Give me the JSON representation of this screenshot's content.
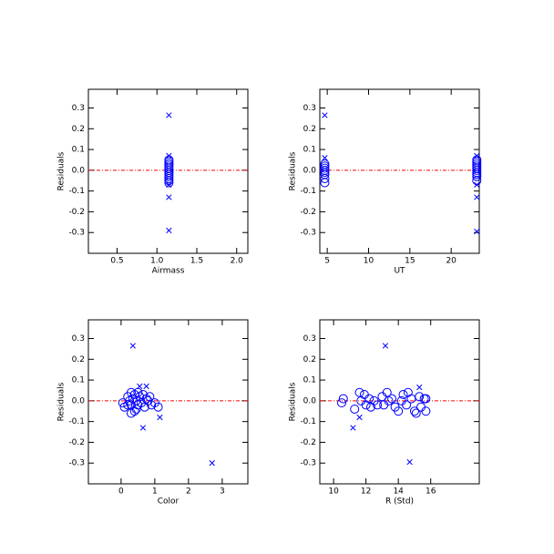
{
  "chart_data": [
    {
      "type": "scatter",
      "xlabel": "Airmass",
      "ylabel": "Residuals",
      "xlim": [
        0.14,
        2.14
      ],
      "ylim": [
        -0.4,
        0.39
      ],
      "xticks": [
        0.5,
        {
          "value": 1,
          "label": "1.0"
        },
        1.5,
        {
          "value": 2,
          "label": "2.0"
        }
      ],
      "yticks": [
        -0.3,
        -0.2,
        -0.1,
        {
          "value": 0,
          "label": "0.0"
        },
        0.1,
        0.2,
        0.3
      ],
      "hline": 0,
      "hline_color": "#ff0000",
      "series": [
        {
          "marker": "o",
          "color": "#0000ff",
          "x": [
            1.15,
            1.15,
            1.15,
            1.15,
            1.15,
            1.15,
            1.15,
            1.15,
            1.15,
            1.15,
            1.15,
            1.15,
            1.15,
            1.15
          ],
          "values": [
            0.05,
            0.04,
            0.03,
            0.02,
            0.01,
            0.0,
            -0.01,
            -0.02,
            -0.03,
            -0.04,
            -0.05,
            -0.06,
            0.03,
            -0.01
          ]
        },
        {
          "marker": "x",
          "color": "#0000ff",
          "x": [
            1.15,
            1.15,
            1.15,
            1.15,
            1.15
          ],
          "values": [
            0.265,
            0.07,
            -0.13,
            -0.29,
            -0.07
          ]
        }
      ]
    },
    {
      "type": "scatter",
      "xlabel": "UT",
      "ylabel": "Residuals",
      "xlim": [
        4.1,
        23.4
      ],
      "ylim": [
        -0.4,
        0.39
      ],
      "xticks": [
        5,
        10,
        15,
        20
      ],
      "yticks": [
        -0.3,
        -0.2,
        -0.1,
        {
          "value": 0,
          "label": "0.0"
        },
        0.1,
        0.2,
        0.3
      ],
      "hline": 0,
      "hline_color": "#ff0000",
      "series": [
        {
          "marker": "o",
          "color": "#0000ff",
          "x": [
            4.7,
            4.7,
            4.7,
            4.7,
            4.7,
            4.7,
            4.7,
            4.7,
            23.1,
            23.1,
            23.1,
            23.1,
            23.1,
            23.1,
            23.1,
            23.1,
            23.1,
            23.1
          ],
          "values": [
            0.03,
            0.02,
            0.01,
            0.0,
            -0.01,
            -0.02,
            -0.04,
            -0.06,
            0.05,
            0.04,
            0.03,
            0.02,
            0.01,
            0.0,
            -0.01,
            -0.02,
            -0.03,
            -0.05
          ]
        },
        {
          "marker": "x",
          "color": "#0000ff",
          "x": [
            4.7,
            4.7,
            23.1,
            23.1,
            23.1,
            23.1
          ],
          "values": [
            0.265,
            0.06,
            0.07,
            -0.13,
            -0.295,
            -0.07
          ]
        }
      ]
    },
    {
      "type": "scatter",
      "xlabel": "Color",
      "ylabel": "Residuals",
      "xlim": [
        -0.97,
        3.76
      ],
      "ylim": [
        -0.4,
        0.39
      ],
      "xticks": [
        0,
        1,
        2,
        3
      ],
      "yticks": [
        -0.3,
        -0.2,
        -0.1,
        {
          "value": 0,
          "label": "0.0"
        },
        0.1,
        0.2,
        0.3
      ],
      "hline": 0,
      "hline_color": "#ff0000",
      "series": [
        {
          "marker": "o",
          "color": "#0000ff",
          "x": [
            0.05,
            0.1,
            0.2,
            0.25,
            0.3,
            0.3,
            0.35,
            0.4,
            0.4,
            0.45,
            0.5,
            0.5,
            0.55,
            0.6,
            0.65,
            0.7,
            0.75,
            0.8,
            0.85,
            0.9,
            1.0,
            1.1,
            0.3,
            0.45,
            0.2
          ],
          "values": [
            -0.01,
            -0.03,
            0.02,
            0.0,
            -0.02,
            0.04,
            0.01,
            -0.05,
            0.03,
            0.0,
            -0.02,
            0.04,
            0.02,
            -0.01,
            0.03,
            -0.03,
            0.01,
            0.0,
            0.02,
            -0.02,
            -0.01,
            -0.03,
            -0.06,
            -0.04,
            -0.02
          ]
        },
        {
          "marker": "x",
          "color": "#0000ff",
          "x": [
            0.35,
            0.55,
            0.75,
            0.65,
            1.15,
            2.7
          ],
          "values": [
            0.265,
            0.07,
            0.07,
            -0.13,
            -0.08,
            -0.3
          ]
        }
      ]
    },
    {
      "type": "scatter",
      "xlabel": "R (Std)",
      "ylabel": "Residuals",
      "xlim": [
        9.15,
        19.0
      ],
      "ylim": [
        -0.4,
        0.39
      ],
      "xticks": [
        10,
        12,
        14,
        16
      ],
      "yticks": [
        -0.3,
        -0.2,
        -0.1,
        {
          "value": 0,
          "label": "0.0"
        },
        0.1,
        0.2,
        0.3
      ],
      "hline": 0,
      "hline_color": "#ff0000",
      "series": [
        {
          "marker": "o",
          "color": "#0000ff",
          "x": [
            10.5,
            10.6,
            11.3,
            11.6,
            11.7,
            11.9,
            12.0,
            12.2,
            12.3,
            12.5,
            12.7,
            13.0,
            13.1,
            13.3,
            13.4,
            13.6,
            13.8,
            14.0,
            14.2,
            14.3,
            14.5,
            14.6,
            14.8,
            15.0,
            15.1,
            15.3,
            15.4,
            15.6,
            15.7,
            15.7
          ],
          "values": [
            -0.01,
            0.01,
            -0.04,
            0.04,
            0.0,
            0.03,
            -0.02,
            0.01,
            -0.03,
            0.0,
            -0.02,
            0.02,
            -0.02,
            0.04,
            0.0,
            0.01,
            -0.03,
            -0.05,
            0.0,
            0.03,
            -0.02,
            0.04,
            0.01,
            -0.05,
            -0.06,
            0.02,
            -0.03,
            0.01,
            -0.05,
            0.01
          ]
        },
        {
          "marker": "x",
          "color": "#0000ff",
          "x": [
            13.2,
            15.3,
            11.2,
            11.6,
            14.7
          ],
          "values": [
            0.265,
            0.065,
            -0.13,
            -0.08,
            -0.295
          ]
        }
      ]
    }
  ]
}
